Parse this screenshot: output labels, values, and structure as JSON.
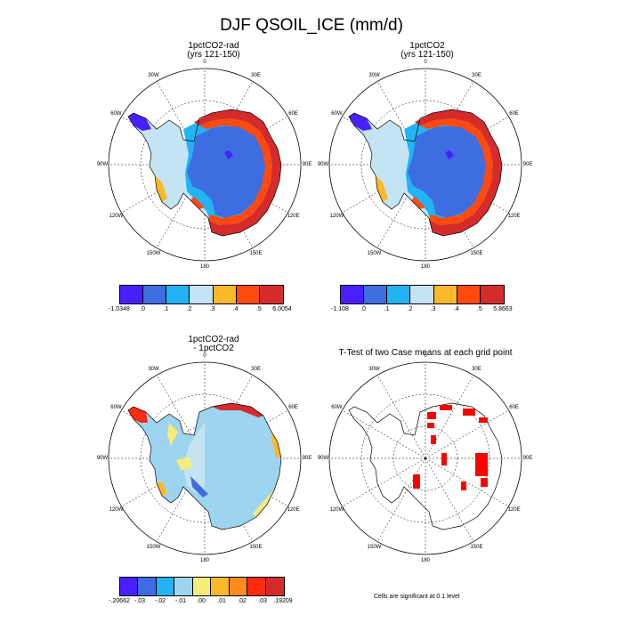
{
  "figure": {
    "title": "DJF QSOIL_ICE (mm/d)"
  },
  "panels": [
    {
      "title_line1": "1pctCO2-rad",
      "title_line2": "(yrs 121-150)",
      "colorbar": {
        "colors": [
          "#4a1fff",
          "#3d6de0",
          "#21b3f4",
          "#c4e3f3",
          "#fbb829",
          "#ff4a10",
          "#d62b2b"
        ],
        "labels": [
          "-1.0348",
          ".0",
          ".1",
          ".2",
          ".3",
          ".4",
          ".5",
          "6.0054"
        ]
      }
    },
    {
      "title_line1": "1pctCO2",
      "title_line2": "(yrs 121-150)",
      "colorbar": {
        "colors": [
          "#4a1fff",
          "#3d6de0",
          "#21b3f4",
          "#c4e3f3",
          "#fbb829",
          "#ff4a10",
          "#d62b2b"
        ],
        "labels": [
          "-1.108",
          ".0",
          ".1",
          ".2",
          ".3",
          ".4",
          ".5",
          "5.8663"
        ]
      }
    },
    {
      "title_line1": "1pctCO2-rad",
      "title_line2": "- 1pctCO2",
      "colorbar": {
        "colors": [
          "#4a1fff",
          "#3d6de0",
          "#21b3f4",
          "#9dd5f0",
          "#f6ec7a",
          "#fbb829",
          "#fb8c1b",
          "#ff2a10",
          "#d62b2b"
        ],
        "labels": [
          "-.20662",
          "-.03",
          "-.02",
          "-.01",
          ".00",
          ".01",
          ".02",
          ".03",
          ".19209"
        ]
      }
    },
    {
      "title_line1": "T-Test of two Case means at each grid point",
      "footnote": "Cells are significant at 0.1 level"
    }
  ],
  "map_labels": [
    "0",
    "30E",
    "60E",
    "90E",
    "120E",
    "150E",
    "180",
    "150W",
    "120W",
    "90W",
    "60W",
    "30W"
  ]
}
